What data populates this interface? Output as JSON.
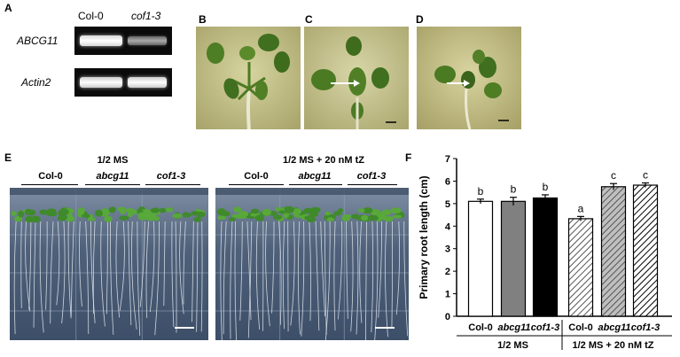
{
  "panels": {
    "a": {
      "letter": "A",
      "columns": [
        "Col-0",
        "cof1-3"
      ],
      "rows": [
        "ABCG11",
        "Actin2"
      ]
    },
    "b": {
      "letter": "B"
    },
    "c": {
      "letter": "C"
    },
    "d": {
      "letter": "D"
    },
    "e": {
      "letter": "E",
      "left_plate": {
        "condition": "1/2 MS",
        "genotypes": [
          "Col-0",
          "abcg11",
          "cof1-3"
        ]
      },
      "right_plate": {
        "condition": "1/2 MS + 20 nM tZ",
        "genotypes": [
          "Col-0",
          "abcg11",
          "cof1-3"
        ]
      }
    },
    "f": {
      "letter": "F"
    }
  },
  "chart_data": {
    "type": "bar",
    "ylabel": "Primary root length (cm)",
    "ylim": [
      0,
      7
    ],
    "yticks": [
      0,
      1,
      2,
      3,
      4,
      5,
      6,
      7
    ],
    "categories": [
      "Col-0",
      "abcg11",
      "cof1-3",
      "Col-0",
      "abcg11",
      "cof1-3"
    ],
    "groups": [
      {
        "label": "1/2 MS",
        "indices": [
          0,
          1,
          2
        ]
      },
      {
        "label": "1/2 MS + 20 nM tZ",
        "indices": [
          3,
          4,
          5
        ]
      }
    ],
    "values": [
      5.1,
      5.1,
      5.25,
      4.33,
      5.75,
      5.82
    ],
    "errors": [
      0.1,
      0.18,
      0.14,
      0.1,
      0.14,
      0.1
    ],
    "significance": [
      "b",
      "b",
      "b",
      "a",
      "c",
      "c"
    ],
    "fills": [
      "white",
      "gray",
      "black",
      "hatch-light",
      "hatch-gray",
      "hatch-dark"
    ],
    "colors": {
      "gray": "#808080",
      "black": "#000000",
      "white": "#ffffff"
    }
  }
}
